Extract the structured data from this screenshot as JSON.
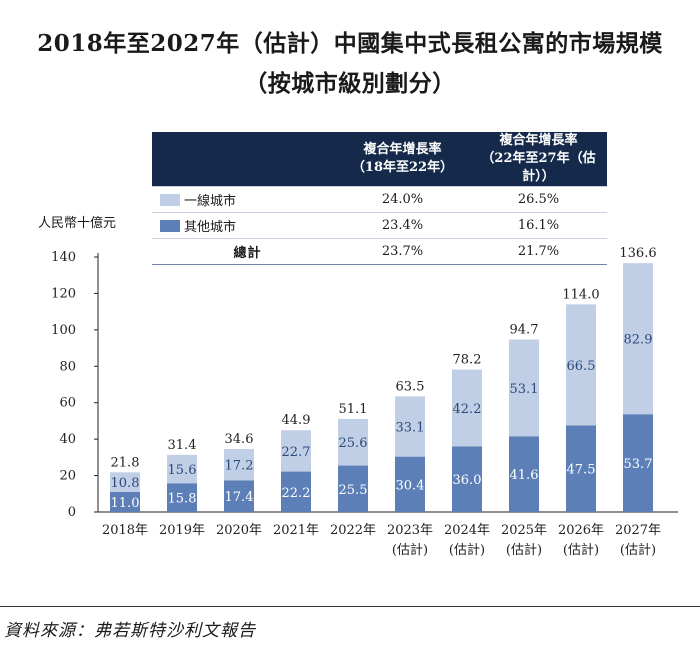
{
  "chart_data": {
    "type": "bar",
    "stacked": true,
    "title": "2018年至2027年（估計）中國集中式長租公寓的市場規模",
    "subtitle": "（按城市級別劃分）",
    "ylabel": "人民幣十億元",
    "ylim": [
      0,
      140
    ],
    "yticks": [
      "0",
      "20",
      "40",
      "60",
      "80",
      "100",
      "120",
      "140"
    ],
    "categories": [
      "2018年",
      "2019年",
      "2020年",
      "2021年",
      "2022年",
      "2023年",
      "2024年",
      "2025年",
      "2026年",
      "2027年"
    ],
    "category_notes": [
      "",
      "",
      "",
      "",
      "",
      "(估計)",
      "(估計)",
      "(估計)",
      "(估計)",
      "(估計)"
    ],
    "series": [
      {
        "name": "其他城市",
        "color": "#5b7fb6",
        "values": [
          11.0,
          15.8,
          17.4,
          22.2,
          25.5,
          30.4,
          36.0,
          41.6,
          47.5,
          53.7
        ]
      },
      {
        "name": "一線城市",
        "color": "#c0cfe6",
        "values": [
          10.8,
          15.6,
          17.2,
          22.7,
          25.6,
          33.1,
          42.2,
          53.1,
          66.5,
          82.9
        ]
      }
    ],
    "totals": [
      21.8,
      31.4,
      34.6,
      44.9,
      51.1,
      63.5,
      78.2,
      94.7,
      114.0,
      136.6
    ],
    "cagr_table": {
      "headers": [
        [
          "複合年增長率",
          "（18年至22年）"
        ],
        [
          "複合年增長率",
          "（22年至27年（估計））"
        ]
      ],
      "rows": [
        {
          "label": "一線城市",
          "swatch": "#c0cfe6",
          "values": [
            "24.0%",
            "26.5%"
          ]
        },
        {
          "label": "其他城市",
          "swatch": "#5b7fb6",
          "values": [
            "23.4%",
            "16.1%"
          ]
        },
        {
          "label": "總計",
          "swatch": "",
          "values": [
            "23.7%",
            "21.7%"
          ]
        }
      ]
    },
    "grid": false,
    "legend": "table-top"
  },
  "source": "資料來源：弗若斯特沙利文報告"
}
